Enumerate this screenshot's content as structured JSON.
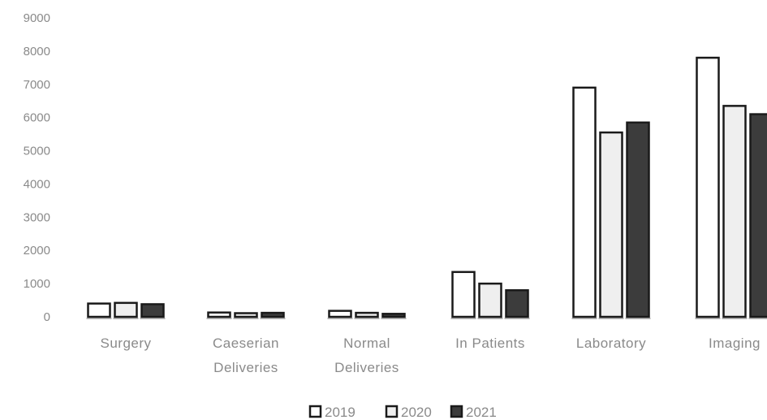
{
  "chart_data": {
    "type": "bar",
    "categories": [
      [
        "Surgery"
      ],
      [
        "Caeserian",
        "Deliveries"
      ],
      [
        "Normal",
        "Deliveries"
      ],
      [
        "In Patients"
      ],
      [
        "Laboratory"
      ],
      [
        "Imaging"
      ]
    ],
    "series": [
      {
        "name": "2019",
        "values": [
          400,
          130,
          180,
          1350,
          6900,
          7800
        ],
        "color": "#ffffff"
      },
      {
        "name": "2020",
        "values": [
          420,
          110,
          120,
          1000,
          5550,
          6350
        ],
        "color": "#efefef"
      },
      {
        "name": "2021",
        "values": [
          380,
          120,
          90,
          800,
          5850,
          6100
        ],
        "color": "#3c3c3c"
      }
    ],
    "yticks": [
      "9000",
      "8000",
      "7000",
      "6000",
      "5000",
      "4000",
      "3000",
      "2000",
      "1000",
      "0"
    ],
    "ylim": [
      0,
      9000
    ],
    "legend_position": "bottom"
  }
}
